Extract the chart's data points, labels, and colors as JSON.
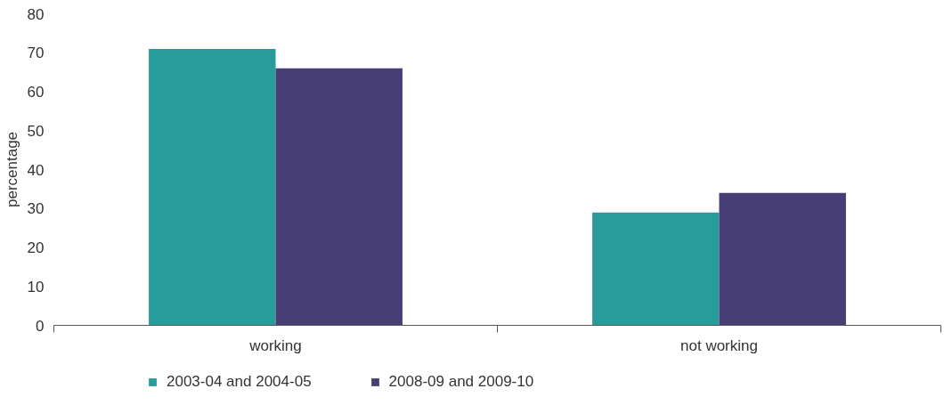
{
  "chart_data": {
    "type": "bar",
    "ylabel": "percentage",
    "categories": [
      "working",
      "not working"
    ],
    "series": [
      {
        "name": "2003-04 and 2004-05",
        "color": "#289c9a",
        "values": [
          71,
          29
        ]
      },
      {
        "name": "2008-09 and 2009-10",
        "color": "#463e74",
        "values": [
          66,
          34
        ]
      }
    ],
    "ylim": [
      0,
      80
    ],
    "yticks": [
      0,
      10,
      20,
      30,
      40,
      50,
      60,
      70,
      80
    ],
    "grid": false,
    "legend": "bottom"
  }
}
